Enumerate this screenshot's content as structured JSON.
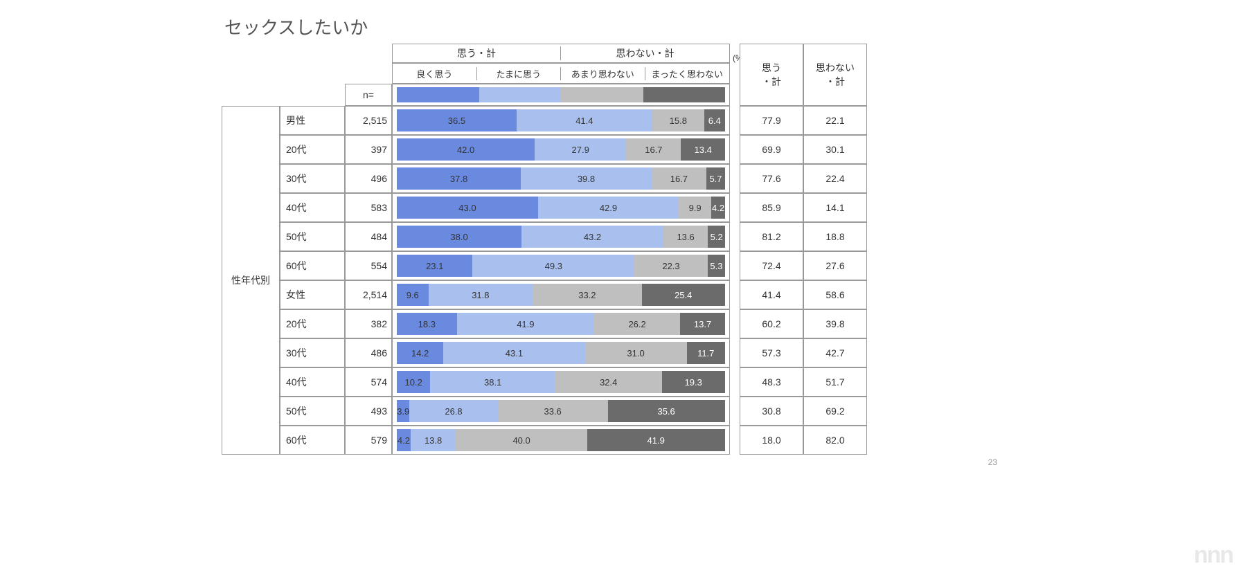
{
  "title": "セックスしたいか",
  "unit_label": "(%)",
  "n_label": "n=",
  "page_number": "23",
  "group_header": "性年代別",
  "top_headers": {
    "think": "思う・計",
    "not_think": "思わない・計"
  },
  "sub_headers": [
    "良く思う",
    "たまに思う",
    "あまり思わない",
    "まったく思わない"
  ],
  "summary_headers": [
    "思う\n・計",
    "思わない\n・計"
  ],
  "colors": {
    "seg1": "#6a8ae0",
    "seg2": "#a9c0ef",
    "seg3": "#bfbfbf",
    "seg4": "#6b6b6b",
    "seg1_text": "#333333",
    "seg2_text": "#333333",
    "seg3_text": "#333333",
    "seg4_text": "#ffffff",
    "border": "#999999",
    "bg": "#ffffff"
  },
  "rows": [
    {
      "label": "男性",
      "n": "2,515",
      "vals": [
        36.5,
        41.4,
        15.8,
        6.4
      ],
      "sum": [
        77.9,
        22.1
      ]
    },
    {
      "label": "20代",
      "n": "397",
      "vals": [
        42.0,
        27.9,
        16.7,
        13.4
      ],
      "sum": [
        69.9,
        30.1
      ]
    },
    {
      "label": "30代",
      "n": "496",
      "vals": [
        37.8,
        39.8,
        16.7,
        5.7
      ],
      "sum": [
        77.6,
        22.4
      ]
    },
    {
      "label": "40代",
      "n": "583",
      "vals": [
        43.0,
        42.9,
        9.9,
        4.2
      ],
      "sum": [
        85.9,
        14.1
      ]
    },
    {
      "label": "50代",
      "n": "484",
      "vals": [
        38.0,
        43.2,
        13.6,
        5.2
      ],
      "sum": [
        81.2,
        18.8
      ]
    },
    {
      "label": "60代",
      "n": "554",
      "vals": [
        23.1,
        49.3,
        22.3,
        5.3
      ],
      "sum": [
        72.4,
        27.6
      ]
    },
    {
      "label": "女性",
      "n": "2,514",
      "vals": [
        9.6,
        31.8,
        33.2,
        25.4
      ],
      "sum": [
        41.4,
        58.6
      ]
    },
    {
      "label": "20代",
      "n": "382",
      "vals": [
        18.3,
        41.9,
        26.2,
        13.7
      ],
      "sum": [
        60.2,
        39.8
      ]
    },
    {
      "label": "30代",
      "n": "486",
      "vals": [
        14.2,
        43.1,
        31.0,
        11.7
      ],
      "sum": [
        57.3,
        42.7
      ]
    },
    {
      "label": "40代",
      "n": "574",
      "vals": [
        10.2,
        38.1,
        32.4,
        19.3
      ],
      "sum": [
        48.3,
        51.7
      ]
    },
    {
      "label": "50代",
      "n": "493",
      "vals": [
        3.9,
        26.8,
        33.6,
        35.6
      ],
      "sum": [
        30.8,
        69.2
      ]
    },
    {
      "label": "60代",
      "n": "579",
      "vals": [
        4.2,
        13.8,
        40.0,
        41.9
      ],
      "sum": [
        18.0,
        82.0
      ]
    }
  ]
}
